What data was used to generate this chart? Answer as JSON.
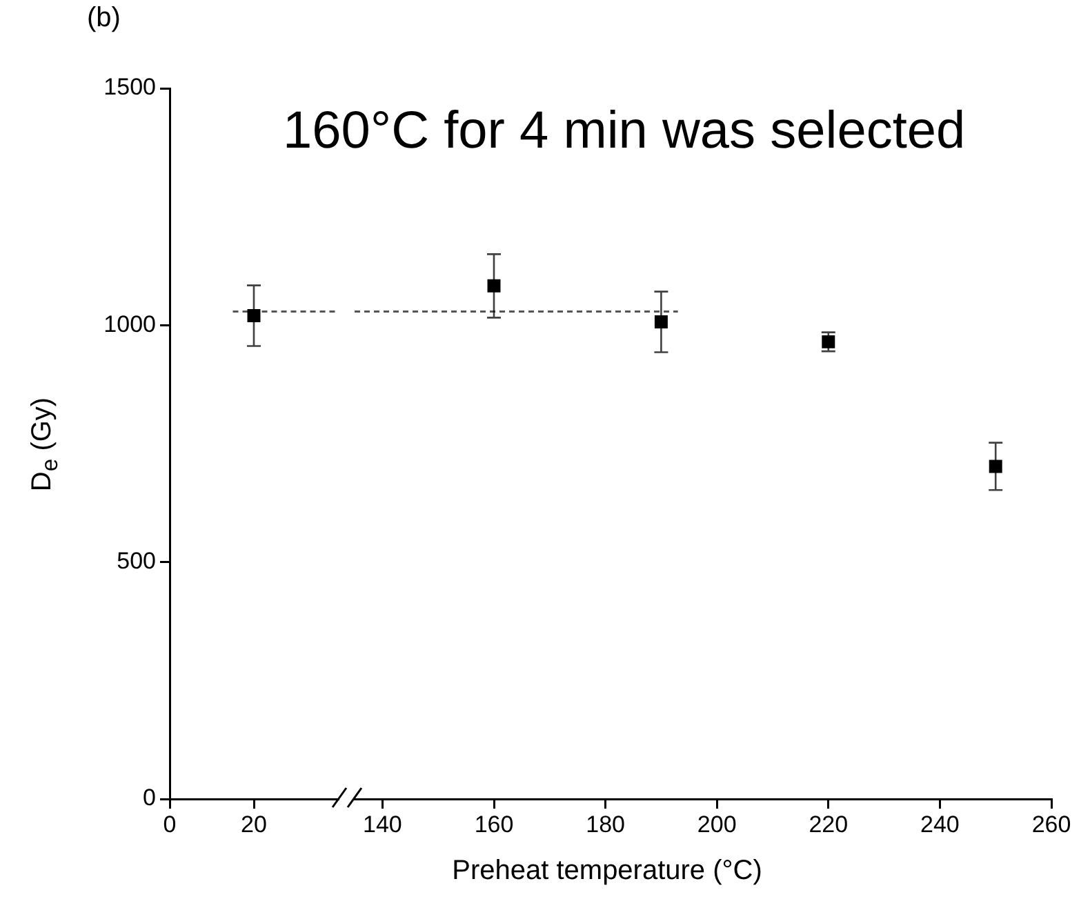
{
  "chart_data": [
    {
      "type": "scatter",
      "title": "(b)",
      "ylabel": "D$_{e}$ (Gy)",
      "xlim": [
        0,
        40
      ],
      "xticks": [
        0,
        20
      ],
      "ylim": [
        0,
        1500
      ],
      "yticks": [
        0,
        500,
        1000,
        1500
      ],
      "grid": false,
      "legend": false,
      "series": [
        {
          "type": "scatter",
          "color": "#000000",
          "marker": "square",
          "x": [
            20
          ],
          "values": [
            1020
          ],
          "errors": [
            64
          ]
        },
        {
          "type": "line",
          "color": "#555555",
          "marker": "none",
          "line_style": "dashed",
          "x": [
            15,
            40
          ],
          "values": [
            1029,
            1029
          ]
        }
      ]
    },
    {
      "type": "scatter",
      "xlabel": "Preheat temperature (°C)",
      "annotations": [
        "160°C for 4 min was selected"
      ],
      "xlim": [
        135,
        260
      ],
      "xticks": [
        140,
        160,
        180,
        200,
        220,
        240,
        260
      ],
      "ylim": [
        0,
        1500
      ],
      "tick_labels": "x",
      "grid": false,
      "legend": false,
      "series": [
        {
          "type": "scatter",
          "color": "#000000",
          "marker": "square",
          "x": [
            160,
            190,
            220,
            250
          ],
          "values": [
            1083,
            1007,
            965,
            702
          ],
          "errors": [
            67,
            64,
            20,
            50
          ]
        },
        {
          "type": "line",
          "color": "#555555",
          "marker": "none",
          "line_style": "dashed",
          "x": [
            135,
            193
          ],
          "values": [
            1029,
            1029
          ]
        }
      ]
    }
  ]
}
